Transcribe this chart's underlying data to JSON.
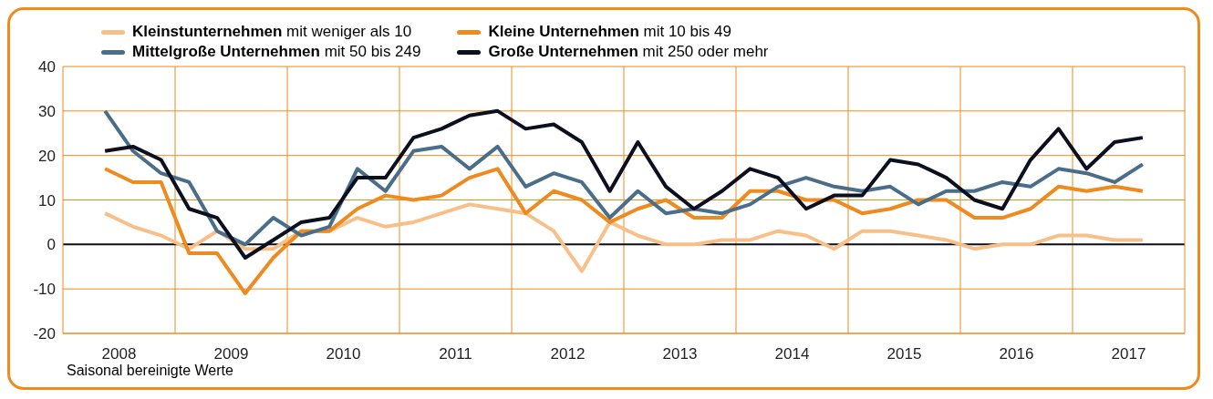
{
  "chart_data": {
    "type": "line",
    "xlim": [
      2008,
      2018
    ],
    "xticks": [
      {
        "value": 2008.5,
        "label": "2008"
      },
      {
        "value": 2009,
        "label": null
      },
      {
        "value": 2009.5,
        "label": "2009"
      },
      {
        "value": 2010,
        "label": null
      },
      {
        "value": 2010.5,
        "label": "2010"
      },
      {
        "value": 2011,
        "label": null
      },
      {
        "value": 2011.5,
        "label": "2011"
      },
      {
        "value": 2012,
        "label": null
      },
      {
        "value": 2012.5,
        "label": "2012"
      },
      {
        "value": 2013,
        "label": null
      },
      {
        "value": 2013.5,
        "label": "2013"
      },
      {
        "value": 2014,
        "label": null
      },
      {
        "value": 2014.5,
        "label": "2014"
      },
      {
        "value": 2015,
        "label": null
      },
      {
        "value": 2015.5,
        "label": "2015"
      },
      {
        "value": 2016,
        "label": null
      },
      {
        "value": 2016.5,
        "label": "2016"
      },
      {
        "value": 2017,
        "label": null
      },
      {
        "value": 2017.5,
        "label": "2017"
      }
    ],
    "x": [
      2008.375,
      2008.625,
      2008.875,
      2009.125,
      2009.375,
      2009.625,
      2009.875,
      2010.125,
      2010.375,
      2010.625,
      2010.875,
      2011.125,
      2011.375,
      2011.625,
      2011.875,
      2012.125,
      2012.375,
      2012.625,
      2012.875,
      2013.125,
      2013.375,
      2013.625,
      2013.875,
      2014.125,
      2014.375,
      2014.625,
      2014.875,
      2015.125,
      2015.375,
      2015.625,
      2015.875,
      2016.125,
      2016.375,
      2016.625,
      2016.875,
      2017.125,
      2017.375,
      2017.625
    ],
    "ylim": [
      -20,
      40
    ],
    "yticks": [
      -20,
      -10,
      0,
      10,
      20,
      30,
      40
    ],
    "grid": true,
    "legend": "top",
    "marker": "none",
    "line_style": "solid",
    "ref_lines": [
      {
        "axis": "y",
        "value": 0,
        "label": null,
        "color": "#0b0f1e"
      }
    ],
    "annotations": [
      "Saisonal bereinigte Werte"
    ],
    "series": [
      {
        "name": "Kleinstunternehmen mit weniger als 10",
        "color": "#f8c088",
        "values": [
          7,
          4,
          2,
          -1,
          3,
          -1,
          -1,
          3,
          3,
          6,
          4,
          5,
          7,
          9,
          8,
          7,
          3,
          -6,
          5,
          2,
          0,
          0,
          1,
          1,
          3,
          2,
          -1,
          3,
          3,
          2,
          1,
          -1,
          0,
          0,
          2,
          2,
          1,
          1
        ]
      },
      {
        "name": "Kleine Unternehmen mit 10 bis 49",
        "color": "#ee8a1e",
        "values": [
          17,
          14,
          14,
          -2,
          -2,
          -11,
          -3,
          3,
          3,
          8,
          11,
          10,
          11,
          15,
          17,
          7,
          12,
          10,
          5,
          8,
          10,
          6,
          6,
          12,
          12,
          10,
          10,
          7,
          8,
          10,
          10,
          6,
          6,
          8,
          13,
          12,
          13,
          12
        ]
      },
      {
        "name": "Mittelgroße Unternehmen mit 50 bis 249",
        "color": "#4a6d89",
        "values": [
          30,
          21,
          16,
          14,
          3,
          0,
          6,
          2,
          4,
          17,
          12,
          21,
          22,
          17,
          22,
          13,
          16,
          14,
          6,
          12,
          7,
          8,
          7,
          9,
          13,
          15,
          13,
          12,
          13,
          9,
          12,
          12,
          14,
          13,
          17,
          16,
          14,
          18
        ]
      },
      {
        "name": "Große Unternehmen mit 250 oder mehr",
        "color": "#0b0f1e",
        "values": [
          21,
          22,
          19,
          8,
          6,
          -3,
          1,
          5,
          6,
          15,
          15,
          24,
          26,
          29,
          30,
          26,
          27,
          23,
          12,
          23,
          13,
          8,
          12,
          17,
          15,
          8,
          11,
          11,
          19,
          18,
          15,
          10,
          8,
          19,
          26,
          17,
          23,
          24
        ]
      }
    ]
  }
}
